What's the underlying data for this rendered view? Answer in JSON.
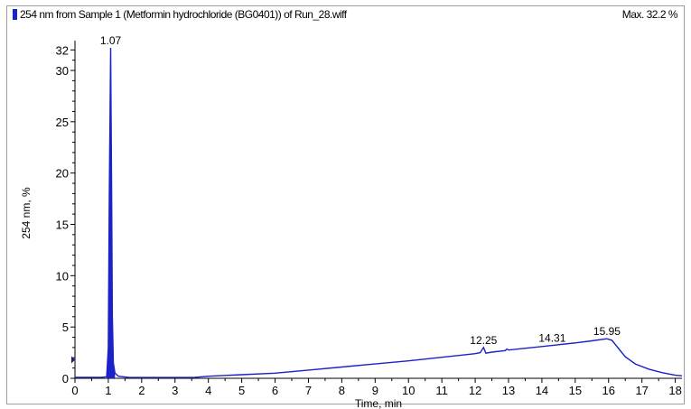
{
  "header": {
    "title": "254 nm from Sample 1 (Metformin hydrochloride (BG0401)) of Run_28.wiff",
    "max_label": "Max. 32.2 %"
  },
  "colors": {
    "trace": "#1a22c8",
    "axis": "#000000",
    "swatch": "#1a22c8"
  },
  "chart_data": {
    "type": "line",
    "title": "254 nm from Sample 1 (Metformin hydrochloride (BG0401)) of Run_28.wiff",
    "xlabel": "Time, min",
    "ylabel": "254 nm, %",
    "xlim": [
      0,
      18.2
    ],
    "ylim": [
      0,
      32.2
    ],
    "x_ticks": [
      0,
      1,
      2,
      3,
      4,
      5,
      6,
      7,
      8,
      9,
      10,
      11,
      12,
      13,
      14,
      15,
      16,
      17,
      18
    ],
    "y_ticks": [
      0,
      5,
      10,
      15,
      20,
      25,
      30,
      32
    ],
    "grid": false,
    "series": [
      {
        "points": [
          [
            0.0,
            0.1
          ],
          [
            0.8,
            0.1
          ],
          [
            0.95,
            0.15
          ],
          [
            1.0,
            3.0
          ],
          [
            1.03,
            18.0
          ],
          [
            1.07,
            32.2
          ],
          [
            1.1,
            18.0
          ],
          [
            1.12,
            6.0
          ],
          [
            1.15,
            1.5
          ],
          [
            1.2,
            0.5
          ],
          [
            1.3,
            0.2
          ],
          [
            1.6,
            0.1
          ],
          [
            2.0,
            0.08
          ],
          [
            3.0,
            0.08
          ],
          [
            3.6,
            0.1
          ],
          [
            4.0,
            0.2
          ],
          [
            5.0,
            0.35
          ],
          [
            6.0,
            0.5
          ],
          [
            7.0,
            0.8
          ],
          [
            8.0,
            1.1
          ],
          [
            9.0,
            1.4
          ],
          [
            10.0,
            1.7
          ],
          [
            11.0,
            2.05
          ],
          [
            12.0,
            2.4
          ],
          [
            12.15,
            2.5
          ],
          [
            12.25,
            3.0
          ],
          [
            12.32,
            2.45
          ],
          [
            12.5,
            2.55
          ],
          [
            12.9,
            2.7
          ],
          [
            12.95,
            2.85
          ],
          [
            13.0,
            2.75
          ],
          [
            14.0,
            3.1
          ],
          [
            14.31,
            3.2
          ],
          [
            15.0,
            3.45
          ],
          [
            15.5,
            3.65
          ],
          [
            15.95,
            3.85
          ],
          [
            16.1,
            3.7
          ],
          [
            16.3,
            2.9
          ],
          [
            16.5,
            2.1
          ],
          [
            16.8,
            1.4
          ],
          [
            17.2,
            0.9
          ],
          [
            17.6,
            0.55
          ],
          [
            18.0,
            0.3
          ],
          [
            18.2,
            0.25
          ]
        ]
      }
    ],
    "peak_labels": [
      {
        "x": 1.07,
        "y": 32.2,
        "text": "1.07"
      },
      {
        "x": 12.25,
        "y": 3.0,
        "text": "12.25"
      },
      {
        "x": 14.31,
        "y": 3.2,
        "text": "14.31"
      },
      {
        "x": 15.95,
        "y": 3.85,
        "text": "15.95"
      }
    ]
  }
}
